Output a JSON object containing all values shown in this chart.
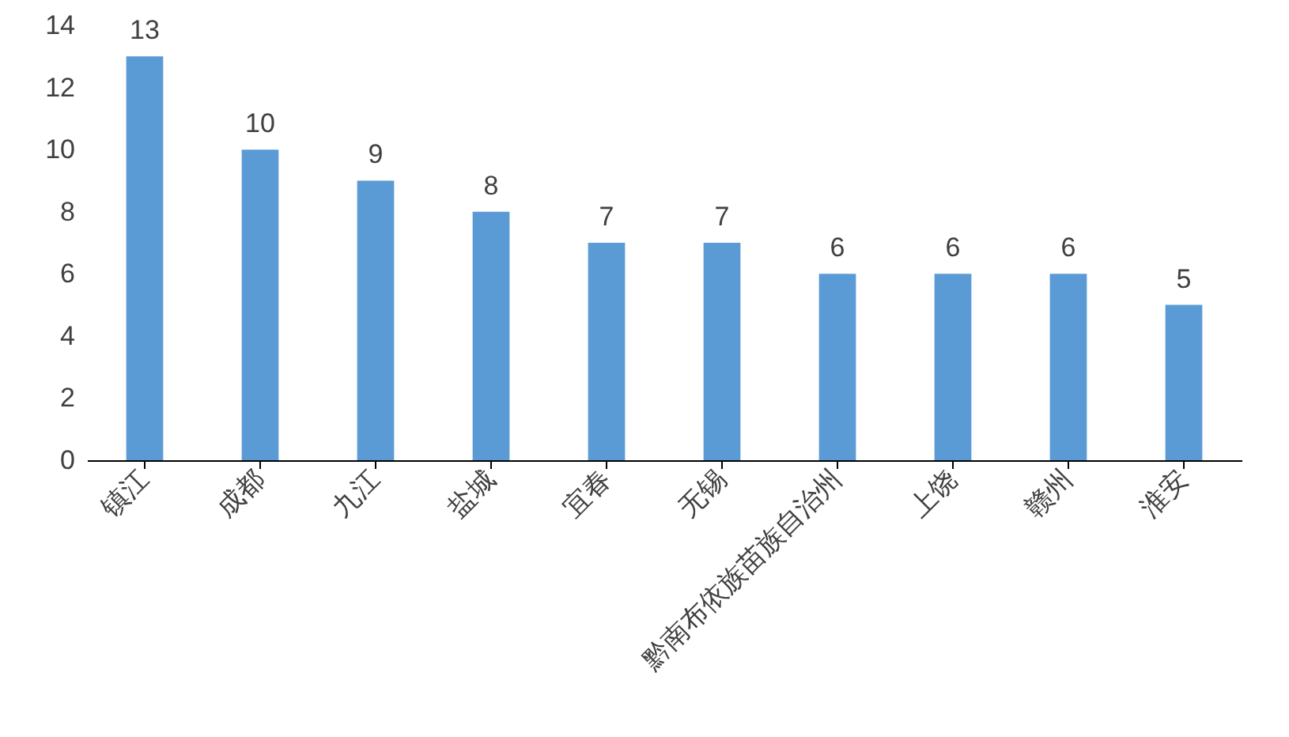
{
  "chart_data": {
    "type": "bar",
    "categories": [
      "镇江",
      "成都",
      "九江",
      "盐城",
      "宜春",
      "无锡",
      "黔南布依族苗族自治州",
      "上饶",
      "赣州",
      "淮安"
    ],
    "values": [
      13,
      10,
      9,
      8,
      7,
      7,
      6,
      6,
      6,
      5
    ],
    "color": "#5b9bd5",
    "ylim": [
      0,
      14
    ],
    "yticks": [
      0,
      2,
      4,
      6,
      8,
      10,
      12,
      14
    ],
    "grid": false,
    "data_labels": true
  }
}
